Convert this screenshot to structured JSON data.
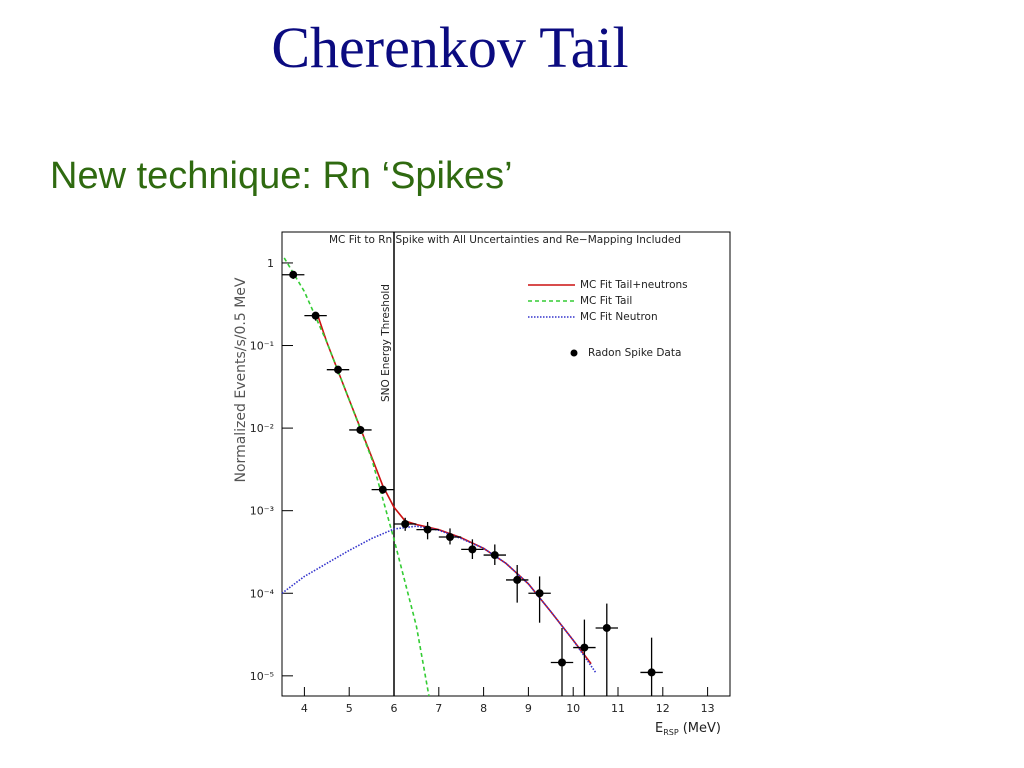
{
  "slide": {
    "title": "Cherenkov Tail",
    "bullet": "New technique: Rn ‘Spikes’"
  },
  "chart_data": {
    "type": "scatter",
    "title": "MC Fit to Rn Spike with All Uncertainties and Re−Mapping Included",
    "ylabel": "Normalized Events/s/0.5 MeV",
    "xlabel": {
      "main": "E",
      "sub": "RSP",
      "unit": "(MeV)"
    },
    "log_y": true,
    "legend": "upper right",
    "xlim": [
      3.5,
      13.5
    ],
    "ylim": [
      5.7e-06,
      2.37
    ],
    "xticks": [
      4,
      5,
      6,
      7,
      8,
      9,
      10,
      11,
      12,
      13
    ],
    "yticks": [
      1,
      {
        "value": 0.1,
        "label": "10⁻¹"
      },
      {
        "value": 0.01,
        "label": "10⁻²"
      },
      {
        "value": 0.001,
        "label": "10⁻³"
      },
      {
        "value": 0.0001,
        "label": "10⁻⁴"
      },
      {
        "value": 1e-05,
        "label": "10⁻⁵"
      }
    ],
    "threshold": {
      "x": 6,
      "label": "SNO Energy Threshold"
    },
    "series": [
      {
        "name": "MC Fit Tail+neutrons",
        "color": "#cc1111",
        "style": "solid",
        "x": [
          4.3,
          4.5,
          5,
          5.5,
          5.75,
          6,
          6.25,
          6.5,
          7,
          7.5,
          8,
          8.5,
          9,
          9.5,
          10,
          10.4
        ],
        "values": [
          0.23,
          0.11,
          0.022,
          0.0045,
          0.002,
          0.0011,
          0.00075,
          0.00068,
          0.00059,
          0.00047,
          0.00035,
          0.00023,
          0.00013,
          6e-05,
          2.7e-05,
          1.4e-05
        ]
      },
      {
        "name": "MC Fit Tail",
        "color": "#33cc33",
        "style": "dashed",
        "x": [
          3.55,
          4,
          4.5,
          5,
          5.5,
          6,
          6.5,
          6.78
        ],
        "values": [
          1.15,
          0.45,
          0.11,
          0.022,
          0.0043,
          0.00045,
          4e-05,
          5.7e-06
        ]
      },
      {
        "name": "MC Fit Neutron",
        "color": "#3333cc",
        "style": "dotted",
        "x": [
          3.5,
          4,
          4.5,
          5,
          5.5,
          6,
          6.5,
          7,
          7.5,
          8,
          8.5,
          9,
          9.5,
          10,
          10.5
        ],
        "values": [
          0.0001,
          0.00016,
          0.00023,
          0.00033,
          0.00046,
          0.0006,
          0.00065,
          0.00058,
          0.00046,
          0.00035,
          0.00023,
          0.00013,
          6e-05,
          2.7e-05,
          1.1e-05
        ]
      },
      {
        "name": "Radon Spike Data",
        "color": "#000000",
        "style": "points",
        "xerr": 0.25,
        "x": [
          3.75,
          4.25,
          4.75,
          5.25,
          5.75,
          6.25,
          6.75,
          7.25,
          7.75,
          8.25,
          8.75,
          9.25,
          9.75,
          10.25,
          10.75,
          11.75
        ],
        "values": [
          0.72,
          0.23,
          0.051,
          0.0095,
          0.0018,
          0.00069,
          0.00059,
          0.00048,
          0.00034,
          0.00029,
          0.000145,
          0.0001,
          1.45e-05,
          2.2e-05,
          3.8e-05,
          1.1e-05
        ],
        "ylow": [
          0.64,
          0.2,
          0.045,
          0.0085,
          0.0016,
          0.00057,
          0.00045,
          0.00039,
          0.00026,
          0.00022,
          7.7e-05,
          4.4e-05,
          5.7e-06,
          5.7e-06,
          5.7e-06,
          5.7e-06
        ],
        "yhigh": [
          0.8,
          0.25,
          0.056,
          0.0105,
          0.002,
          0.00082,
          0.00073,
          0.00061,
          0.00045,
          0.00039,
          0.00022,
          0.00016,
          3.8e-05,
          4.8e-05,
          7.5e-05,
          2.9e-05
        ]
      }
    ]
  }
}
